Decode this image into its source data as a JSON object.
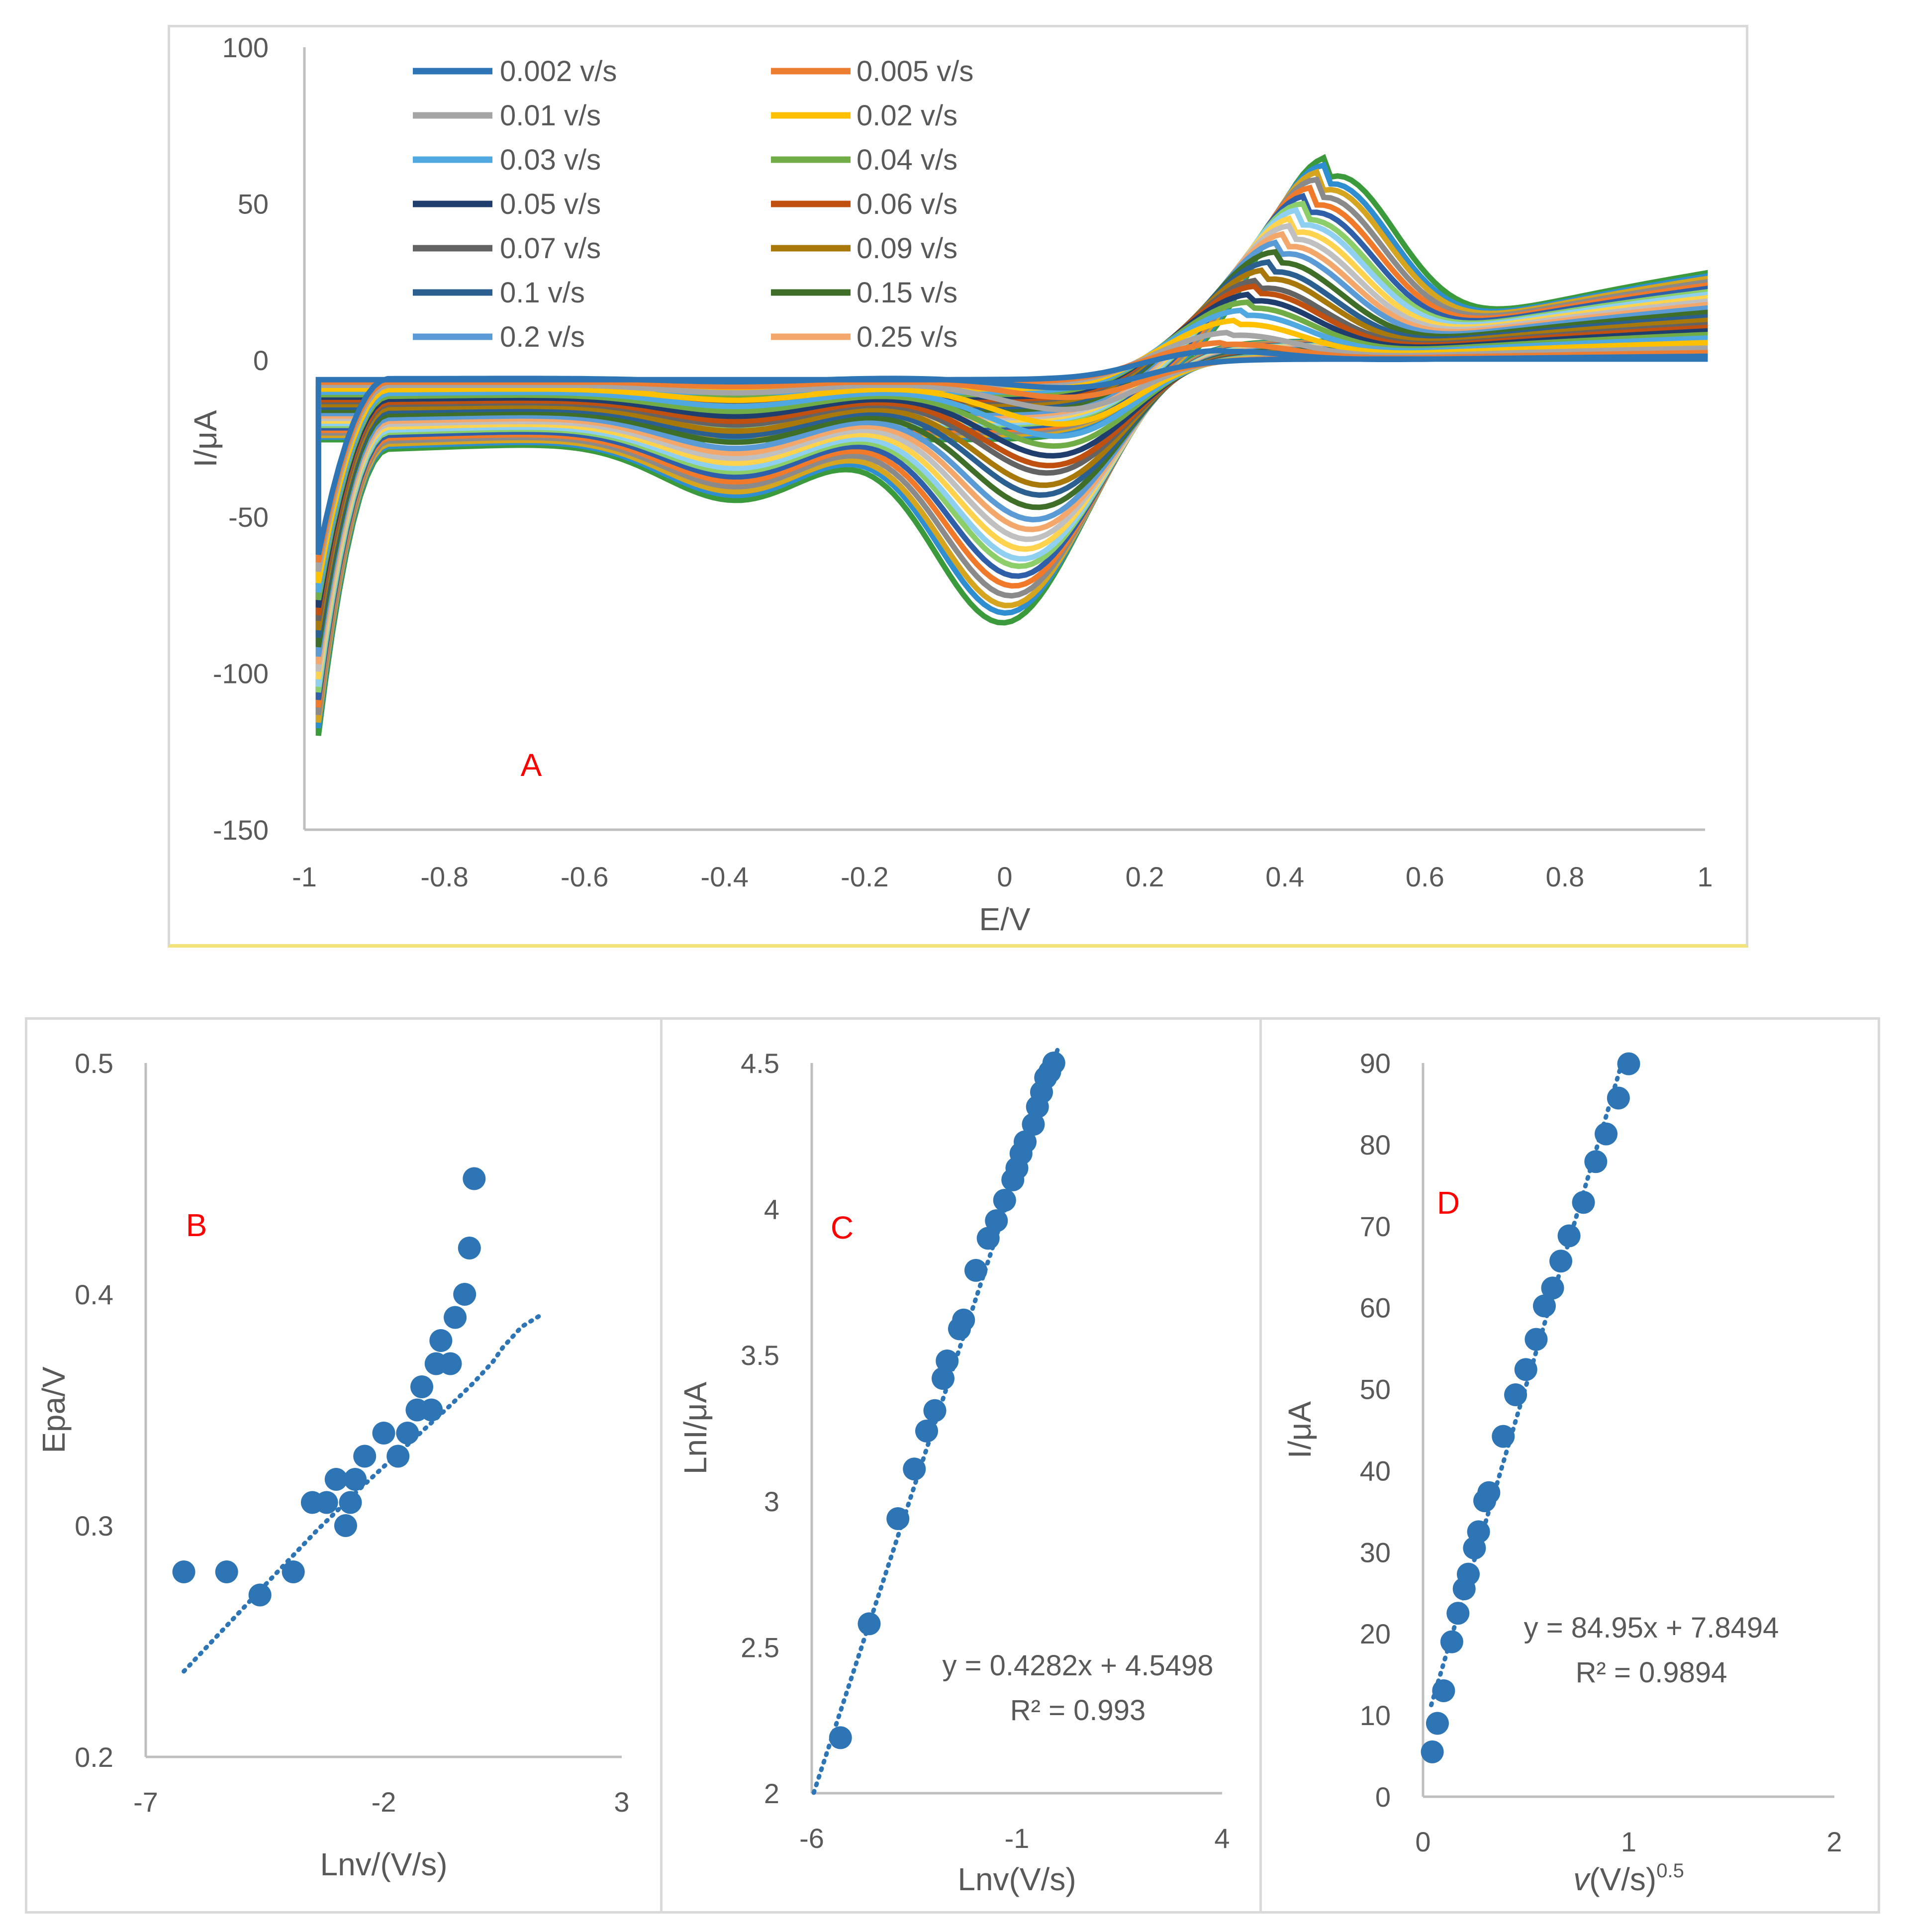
{
  "chart_data": [
    {
      "id": "A",
      "type": "line",
      "panel_label": "A",
      "xlabel": "E/V",
      "ylabel": "I/μA",
      "xlim": [
        -1,
        1
      ],
      "ylim": [
        -150,
        100
      ],
      "xticks": [
        "-1",
        "-0.8",
        "-0.6",
        "-0.4",
        "-0.2",
        "0",
        "0.2",
        "0.4",
        "0.6",
        "0.8",
        "1"
      ],
      "yticks": [
        "100",
        "50",
        "0",
        "-50",
        "-100",
        "-150"
      ],
      "legend_position": "top-left",
      "grid": false,
      "series": [
        {
          "name": "0.002 v/s",
          "color": "#2e75b6",
          "scale": 0.06
        },
        {
          "name": "0.005 v/s",
          "color": "#ed7d31",
          "scale": 0.1
        },
        {
          "name": "0.01 v/s",
          "color": "#a5a5a5",
          "scale": 0.15
        },
        {
          "name": "0.02 v/s",
          "color": "#ffc000",
          "scale": 0.21
        },
        {
          "name": "0.03 v/s",
          "color": "#4fa9e0",
          "scale": 0.26
        },
        {
          "name": "0.04 v/s",
          "color": "#70ad47",
          "scale": 0.3
        },
        {
          "name": "0.05 v/s",
          "color": "#1f3e6e",
          "scale": 0.34
        },
        {
          "name": "0.06 v/s",
          "color": "#c0500f",
          "scale": 0.38
        },
        {
          "name": "0.07 v/s",
          "color": "#636363",
          "scale": 0.41
        },
        {
          "name": "0.09 v/s",
          "color": "#a8790a",
          "scale": 0.46
        },
        {
          "name": "0.1 v/s",
          "color": "#2a5f8f",
          "scale": 0.5
        },
        {
          "name": "0.15 v/s",
          "color": "#3e6e28",
          "scale": 0.55
        },
        {
          "name": "0.2 v/s",
          "color": "#5b9bd5",
          "scale": 0.6
        },
        {
          "name": "0.25 v/s",
          "color": "#f4a76b",
          "scale": 0.64
        },
        {
          "name": "",
          "color": "#c0c0c0",
          "scale": 0.68
        },
        {
          "name": "",
          "color": "#ffd34d",
          "scale": 0.72
        },
        {
          "name": "",
          "color": "#8fd0f0",
          "scale": 0.76
        },
        {
          "name": "",
          "color": "#8ccf6a",
          "scale": 0.79
        },
        {
          "name": "",
          "color": "#2e5fa8",
          "scale": 0.83
        },
        {
          "name": "",
          "color": "#f07a2a",
          "scale": 0.87
        },
        {
          "name": "",
          "color": "#8a8a8a",
          "scale": 0.91
        },
        {
          "name": "",
          "color": "#d6a520",
          "scale": 0.95
        },
        {
          "name": "",
          "color": "#2f8ed0",
          "scale": 0.98
        },
        {
          "name": "",
          "color": "#3b9a3b",
          "scale": 1.02
        }
      ]
    },
    {
      "id": "B",
      "type": "scatter",
      "panel_label": "B",
      "xlabel": "Lnv/(V/s)",
      "ylabel": "Epa/V",
      "xlim": [
        -7,
        3
      ],
      "ylim": [
        0.2,
        0.5
      ],
      "xticks": [
        "-7",
        "-2",
        "3"
      ],
      "yticks": [
        "0.5",
        "0.4",
        "0.3",
        "0.2"
      ],
      "marker_color": "#2e75b6",
      "trendline": {
        "type": "polynomial",
        "x": [
          -6.2,
          -4.6,
          -3.4,
          -2.5,
          -1.5,
          -0.6,
          -0.1,
          0.3,
          0.5,
          0.9,
          1.3
        ],
        "y": [
          0.237,
          0.272,
          0.298,
          0.316,
          0.335,
          0.352,
          0.362,
          0.371,
          0.377,
          0.386,
          0.391
        ]
      },
      "points": [
        {
          "x": -6.2,
          "y": 0.28
        },
        {
          "x": -5.3,
          "y": 0.28
        },
        {
          "x": -4.6,
          "y": 0.27
        },
        {
          "x": -3.9,
          "y": 0.28
        },
        {
          "x": -3.5,
          "y": 0.31
        },
        {
          "x": -3.2,
          "y": 0.31
        },
        {
          "x": -3.0,
          "y": 0.32
        },
        {
          "x": -2.8,
          "y": 0.3
        },
        {
          "x": -2.7,
          "y": 0.31
        },
        {
          "x": -2.6,
          "y": 0.32
        },
        {
          "x": -2.4,
          "y": 0.33
        },
        {
          "x": -2.0,
          "y": 0.34
        },
        {
          "x": -1.7,
          "y": 0.33
        },
        {
          "x": -1.5,
          "y": 0.34
        },
        {
          "x": -1.3,
          "y": 0.35
        },
        {
          "x": -1.2,
          "y": 0.36
        },
        {
          "x": -1.0,
          "y": 0.35
        },
        {
          "x": -0.9,
          "y": 0.37
        },
        {
          "x": -0.8,
          "y": 0.38
        },
        {
          "x": -0.6,
          "y": 0.37
        },
        {
          "x": -0.5,
          "y": 0.39
        },
        {
          "x": -0.3,
          "y": 0.4
        },
        {
          "x": -0.2,
          "y": 0.42
        },
        {
          "x": -0.1,
          "y": 0.45
        }
      ]
    },
    {
      "id": "C",
      "type": "scatter",
      "panel_label": "C",
      "xlabel": "Lnv(V/s)",
      "ylabel": "LnI/μA",
      "xlim": [
        -6,
        4
      ],
      "ylim": [
        2,
        4.5
      ],
      "xticks": [
        "-6",
        "-1",
        "4"
      ],
      "yticks": [
        "4.5",
        "4",
        "3.5",
        "3",
        "2.5",
        "2"
      ],
      "marker_color": "#2e75b6",
      "equation": "y = 0.4282x + 4.5498",
      "r2": "R² = 0.993",
      "trendline": {
        "slope": 0.4282,
        "intercept": 4.5498,
        "x_range": [
          -5.95,
          0
        ]
      },
      "points": [
        {
          "x": -5.3,
          "y": 2.19
        },
        {
          "x": -4.6,
          "y": 2.58
        },
        {
          "x": -3.9,
          "y": 2.94
        },
        {
          "x": -3.5,
          "y": 3.11
        },
        {
          "x": -3.2,
          "y": 3.24
        },
        {
          "x": -3.0,
          "y": 3.31
        },
        {
          "x": -2.8,
          "y": 3.42
        },
        {
          "x": -2.7,
          "y": 3.48
        },
        {
          "x": -2.4,
          "y": 3.59
        },
        {
          "x": -2.3,
          "y": 3.62
        },
        {
          "x": -2.0,
          "y": 3.79
        },
        {
          "x": -1.7,
          "y": 3.9
        },
        {
          "x": -1.5,
          "y": 3.96
        },
        {
          "x": -1.3,
          "y": 4.03
        },
        {
          "x": -1.1,
          "y": 4.1
        },
        {
          "x": -1.0,
          "y": 4.14
        },
        {
          "x": -0.9,
          "y": 4.19
        },
        {
          "x": -0.8,
          "y": 4.23
        },
        {
          "x": -0.6,
          "y": 4.29
        },
        {
          "x": -0.5,
          "y": 4.35
        },
        {
          "x": -0.4,
          "y": 4.4
        },
        {
          "x": -0.3,
          "y": 4.45
        },
        {
          "x": -0.2,
          "y": 4.47
        },
        {
          "x": -0.1,
          "y": 4.5
        }
      ]
    },
    {
      "id": "D",
      "type": "scatter",
      "panel_label": "D",
      "xlabel": "v(V/s)0.5",
      "ylabel": "I/μA",
      "xlim": [
        0,
        2
      ],
      "ylim": [
        0,
        90
      ],
      "xticks": [
        "0",
        "1",
        "2"
      ],
      "yticks": [
        "90",
        "80",
        "70",
        "60",
        "50",
        "40",
        "30",
        "20",
        "10",
        "0"
      ],
      "marker_color": "#2e75b6",
      "equation": "y = 84.95x + 7.8494",
      "r2": "R² = 0.9894",
      "trendline": {
        "slope": 84.95,
        "intercept": 7.8494,
        "x_range": [
          0.04,
          0.97
        ]
      },
      "points": [
        {
          "x": 0.045,
          "y": 5.5
        },
        {
          "x": 0.07,
          "y": 9.0
        },
        {
          "x": 0.1,
          "y": 13.0
        },
        {
          "x": 0.14,
          "y": 19.0
        },
        {
          "x": 0.17,
          "y": 22.5
        },
        {
          "x": 0.2,
          "y": 25.5
        },
        {
          "x": 0.22,
          "y": 27.3
        },
        {
          "x": 0.25,
          "y": 30.5
        },
        {
          "x": 0.27,
          "y": 32.5
        },
        {
          "x": 0.3,
          "y": 36.3
        },
        {
          "x": 0.32,
          "y": 37.3
        },
        {
          "x": 0.39,
          "y": 44.2
        },
        {
          "x": 0.45,
          "y": 49.3
        },
        {
          "x": 0.5,
          "y": 52.4
        },
        {
          "x": 0.55,
          "y": 56.1
        },
        {
          "x": 0.59,
          "y": 60.2
        },
        {
          "x": 0.63,
          "y": 62.4
        },
        {
          "x": 0.67,
          "y": 65.7
        },
        {
          "x": 0.71,
          "y": 68.8
        },
        {
          "x": 0.78,
          "y": 72.9
        },
        {
          "x": 0.84,
          "y": 77.9
        },
        {
          "x": 0.89,
          "y": 81.3
        },
        {
          "x": 0.95,
          "y": 85.7
        },
        {
          "x": 1.0,
          "y": 89.9
        }
      ]
    }
  ]
}
